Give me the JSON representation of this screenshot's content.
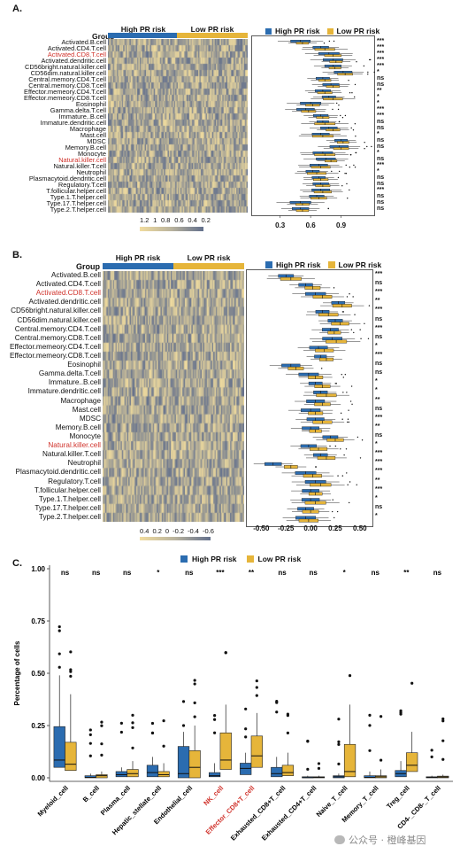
{
  "panels": {
    "a": {
      "label": "A.",
      "group_label": "Group",
      "groups": [
        "High PR risk",
        "Low PR risk"
      ],
      "legend": [
        "High PR risk",
        "Low PR risk"
      ],
      "scale_ticks": [
        "1.2",
        "1",
        "0.8",
        "0.6",
        "0.4",
        "0.2"
      ],
      "axis_ticks": [
        "0.3",
        "0.6",
        "0.9"
      ],
      "axis_values": [
        0.3,
        0.6,
        0.9
      ],
      "axis_range": [
        0.05,
        1.2
      ]
    },
    "b": {
      "label": "B.",
      "group_label": "Group",
      "groups": [
        "High PR risk",
        "Low PR risk"
      ],
      "legend": [
        "High PR risk",
        "Low PR risk"
      ],
      "scale_ticks": [
        "0.4",
        "0.2",
        "0",
        "-0.2",
        "-0.4",
        "-0.6"
      ],
      "axis_ticks": [
        "-0.50",
        "-0.25",
        "0.00",
        "0.25",
        "0.50"
      ],
      "axis_values": [
        -0.5,
        -0.25,
        0,
        0.25,
        0.5
      ],
      "axis_range": [
        -0.62,
        0.6
      ]
    },
    "c": {
      "label": "C.",
      "legend": [
        "High PR risk",
        "Low PR risk"
      ],
      "ylabel": "Percentage of cells"
    }
  },
  "cell_types": [
    {
      "name": "Activated.B.cell",
      "red": false
    },
    {
      "name": "Activated.CD4.T.cell",
      "red": false
    },
    {
      "name": "Activated.CD8.T.cell",
      "red": true
    },
    {
      "name": "Activated.dendritic.cell",
      "red": false
    },
    {
      "name": "CD56bright.natural.killer.cell",
      "red": false
    },
    {
      "name": "CD56dim.natural.killer.cell",
      "red": false
    },
    {
      "name": "Central.memory.CD4.T.cell",
      "red": false
    },
    {
      "name": "Central.memory.CD8.T.cell",
      "red": false
    },
    {
      "name": "Effector.memeory.CD4.T.cell",
      "red": false
    },
    {
      "name": "Effector.memeory.CD8.T.cell",
      "red": false
    },
    {
      "name": "Eosinophil",
      "red": false
    },
    {
      "name": "Gamma.delta.T.cell",
      "red": false
    },
    {
      "name": "Immature..B.cell",
      "red": false
    },
    {
      "name": "Immature.dendritic.cell",
      "red": false
    },
    {
      "name": "Macrophage",
      "red": false
    },
    {
      "name": "Mast.cell",
      "red": false
    },
    {
      "name": "MDSC",
      "red": false
    },
    {
      "name": "Memory.B.cell",
      "red": false
    },
    {
      "name": "Monocyte",
      "red": false
    },
    {
      "name": "Natural.killer.cell",
      "red": true
    },
    {
      "name": "Natural.killer.T.cell",
      "red": false
    },
    {
      "name": "Neutrophil",
      "red": false
    },
    {
      "name": "Plasmacytoid.dendritic.cell",
      "red": false
    },
    {
      "name": "Regulatory.T.cell",
      "red": false
    },
    {
      "name": "T.follicular.helper.cell",
      "red": false
    },
    {
      "name": "Type.1.T.helper.cell",
      "red": false
    },
    {
      "name": "Type.17.T.helper.cell",
      "red": false
    },
    {
      "name": "Type.2.T.helper.cell",
      "red": false
    }
  ],
  "colors": {
    "high": "#2b6cb0",
    "low": "#e6b53a",
    "heat_low": "#63708c",
    "heat_high": "#f1dc9e",
    "red_label": "#d0322b"
  },
  "chart_data": [
    {
      "type": "box",
      "panel": "A",
      "categories": [
        "Activated.B.cell",
        "Activated.CD4.T.cell",
        "Activated.CD8.T.cell",
        "Activated.dendritic.cell",
        "CD56bright.natural.killer.cell",
        "CD56dim.natural.killer.cell",
        "Central.memory.CD4.T.cell",
        "Central.memory.CD8.T.cell",
        "Effector.memeory.CD4.T.cell",
        "Effector.memeory.CD8.T.cell",
        "Eosinophil",
        "Gamma.delta.T.cell",
        "Immature..B.cell",
        "Immature.dendritic.cell",
        "Macrophage",
        "Mast.cell",
        "MDSC",
        "Memory.B.cell",
        "Monocyte",
        "Natural.killer.cell",
        "Natural.killer.T.cell",
        "Neutrophil",
        "Plasmacytoid.dendritic.cell",
        "Regulatory.T.cell",
        "T.follicular.helper.cell",
        "Type.1.T.helper.cell",
        "Type.17.T.helper.cell",
        "Type.2.T.helper.cell"
      ],
      "series": [
        {
          "medians": [
            0.5,
            0.7,
            0.78,
            0.82,
            0.82,
            0.92,
            0.72,
            0.8,
            0.72,
            0.78,
            0.6,
            0.55,
            0.7,
            0.72,
            0.78,
            0.7,
            0.9,
            0.88,
            0.72,
            0.75,
            0.68,
            0.62,
            0.68,
            0.7,
            0.7,
            0.66,
            0.5,
            0.5
          ]
        },
        {
          "medians": [
            0.52,
            0.74,
            0.82,
            0.85,
            0.84,
            0.94,
            0.74,
            0.82,
            0.74,
            0.82,
            0.62,
            0.58,
            0.72,
            0.74,
            0.82,
            0.72,
            0.92,
            0.9,
            0.74,
            0.8,
            0.7,
            0.66,
            0.7,
            0.72,
            0.72,
            0.68,
            0.52,
            0.52
          ]
        }
      ],
      "significance": [
        "***",
        "***",
        "***",
        "***",
        "***",
        "*",
        "ns",
        "ns",
        "**",
        "*",
        "*",
        "***",
        "***",
        "ns",
        "ns",
        "*",
        "ns",
        "ns",
        "*",
        "ns",
        "***",
        "*",
        "ns",
        "ns",
        "***",
        "ns",
        "ns",
        "ns"
      ],
      "xlim": [
        0.05,
        1.2
      ]
    },
    {
      "type": "box",
      "panel": "B",
      "categories": [
        "Activated.B.cell",
        "Activated.CD4.T.cell",
        "Activated.CD8.T.cell",
        "Activated.dendritic.cell",
        "CD56bright.natural.killer.cell",
        "CD56dim.natural.killer.cell",
        "Central.memory.CD4.T.cell",
        "Central.memory.CD8.T.cell",
        "Effector.memeory.CD4.T.cell",
        "Effector.memeory.CD8.T.cell",
        "Eosinophil",
        "Gamma.delta.T.cell",
        "Immature..B.cell",
        "Immature.dendritic.cell",
        "Macrophage",
        "Mast.cell",
        "MDSC",
        "Memory.B.cell",
        "Monocyte",
        "Natural.killer.cell",
        "Natural.killer.T.cell",
        "Neutrophil",
        "Plasmacytoid.dendritic.cell",
        "Regulatory.T.cell",
        "T.follicular.helper.cell",
        "Type.1.T.helper.cell",
        "Type.17.T.helper.cell",
        "Type.2.T.helper.cell"
      ],
      "series": [
        {
          "medians": [
            -0.25,
            -0.05,
            0.05,
            0.28,
            0.12,
            0.25,
            0.2,
            0.22,
            0.08,
            0.1,
            -0.2,
            -0.02,
            0.05,
            0.1,
            0.05,
            0.0,
            0.05,
            0.0,
            0.2,
            -0.02,
            0.1,
            -0.38,
            -0.05,
            0.05,
            0.0,
            0.0,
            -0.05,
            -0.05
          ]
        },
        {
          "medians": [
            -0.2,
            0.02,
            0.12,
            0.32,
            0.18,
            0.3,
            0.24,
            0.26,
            0.14,
            0.16,
            -0.15,
            0.05,
            0.12,
            0.16,
            0.12,
            0.05,
            0.12,
            0.05,
            0.25,
            0.08,
            0.16,
            -0.2,
            0.02,
            0.1,
            0.05,
            0.05,
            0.0,
            -0.02
          ]
        }
      ],
      "significance": [
        "***",
        "ns",
        "***",
        "**",
        "***",
        "ns",
        "***",
        "ns",
        "*",
        "***",
        "ns",
        "ns",
        "*",
        "*",
        "**",
        "ns",
        "***",
        "**",
        "ns",
        "*",
        "***",
        "***",
        "***",
        "**",
        "***",
        "*",
        "ns",
        "*"
      ],
      "xlim": [
        -0.62,
        0.6
      ]
    },
    {
      "type": "box",
      "panel": "C",
      "categories": [
        "Myeloid_cell",
        "B_cell",
        "Plasma_cell",
        "Hepatic_stellate_cell",
        "Endothelial_cell",
        "NK_cell",
        "Effector_CD8+T_cell",
        "Exhausted_CD8+T_cell",
        "Exhausted_CD4+T_cell",
        "Naive_T_cell",
        "Memory_T_cell",
        "Treg_cell",
        "CD4-_CD8-_T_cell"
      ],
      "red_categories": [
        "NK_cell",
        "Effector_CD8+T_cell"
      ],
      "series": [
        {
          "name": "High PR risk",
          "q1": [
            0.05,
            0,
            0.005,
            0.005,
            0,
            0.005,
            0.015,
            0.005,
            0,
            0,
            0,
            0.005,
            0
          ],
          "median": [
            0.085,
            0.002,
            0.015,
            0.025,
            0.02,
            0.01,
            0.045,
            0.02,
            0.001,
            0.005,
            0.002,
            0.02,
            0.002
          ],
          "q3": [
            0.245,
            0.01,
            0.03,
            0.06,
            0.15,
            0.025,
            0.07,
            0.05,
            0.005,
            0.01,
            0.01,
            0.035,
            0.005
          ],
          "whisker_high": [
            0.49,
            0.02,
            0.05,
            0.1,
            0.22,
            0.07,
            0.12,
            0.1,
            0.01,
            0.02,
            0.03,
            0.08,
            0.01
          ]
        },
        {
          "name": "Low PR risk",
          "q1": [
            0.035,
            0,
            0.005,
            0.005,
            0,
            0.04,
            0.05,
            0.01,
            0,
            0.005,
            0,
            0.03,
            0
          ],
          "median": [
            0.065,
            0.01,
            0.02,
            0.015,
            0.05,
            0.085,
            0.105,
            0.025,
            0.002,
            0.03,
            0.005,
            0.06,
            0.004
          ],
          "q3": [
            0.17,
            0.015,
            0.04,
            0.03,
            0.13,
            0.215,
            0.2,
            0.06,
            0.005,
            0.16,
            0.01,
            0.12,
            0.008
          ],
          "whisker_high": [
            0.4,
            0.03,
            0.08,
            0.07,
            0.25,
            0.35,
            0.31,
            0.12,
            0.01,
            0.35,
            0.04,
            0.22,
            0.015
          ]
        }
      ],
      "significance": [
        "ns",
        "ns",
        "ns",
        "*",
        "ns",
        "***",
        "**",
        "ns",
        "ns",
        "*",
        "ns",
        "**",
        "ns"
      ],
      "yticks": [
        0,
        0.25,
        0.5,
        0.75,
        1.0
      ],
      "ytick_labels": [
        "0.00",
        "0.25",
        "0.50",
        "0.75",
        "1.00"
      ],
      "ylim": [
        0,
        1.0
      ],
      "ylabel": "Percentage of cells"
    }
  ],
  "watermark": "公众号 · 橙峰基因"
}
